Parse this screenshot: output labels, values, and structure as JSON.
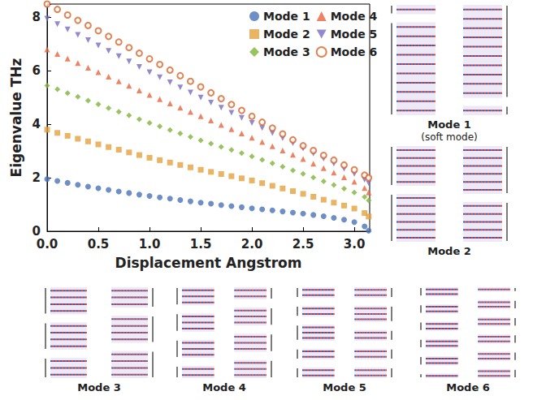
{
  "chart_data": {
    "type": "scatter",
    "x_label": "Displacement Angstrom",
    "y_label": "Eigenvalue THz",
    "x": [
      0.0,
      0.1,
      0.2,
      0.3,
      0.4,
      0.5,
      0.6,
      0.7,
      0.8,
      0.9,
      1.0,
      1.1,
      1.2,
      1.3,
      1.4,
      1.5,
      1.6,
      1.7,
      1.8,
      1.9,
      2.0,
      2.1,
      2.2,
      2.3,
      2.4,
      2.5,
      2.6,
      2.7,
      2.8,
      2.9,
      3.0,
      3.1,
      3.14
    ],
    "series": [
      {
        "name": "Mode 1",
        "color": "#4a72b8",
        "marker": "circle",
        "values": [
          1.95,
          1.88,
          1.81,
          1.74,
          1.67,
          1.61,
          1.55,
          1.49,
          1.43,
          1.37,
          1.32,
          1.27,
          1.22,
          1.17,
          1.12,
          1.07,
          1.03,
          0.98,
          0.94,
          0.9,
          0.86,
          0.82,
          0.78,
          0.74,
          0.7,
          0.66,
          0.61,
          0.56,
          0.5,
          0.43,
          0.34,
          0.18,
          0.02
        ]
      },
      {
        "name": "Mode 2",
        "color": "#e3a13c",
        "marker": "square",
        "values": [
          3.8,
          3.68,
          3.57,
          3.46,
          3.36,
          3.25,
          3.15,
          3.05,
          2.95,
          2.85,
          2.75,
          2.66,
          2.57,
          2.48,
          2.39,
          2.3,
          2.22,
          2.14,
          2.06,
          1.98,
          1.9,
          1.8,
          1.7,
          1.6,
          1.5,
          1.4,
          1.29,
          1.18,
          1.07,
          0.96,
          0.85,
          0.68,
          0.55
        ]
      },
      {
        "name": "Mode 3",
        "color": "#7fb33a",
        "marker": "diamond",
        "values": [
          5.45,
          5.31,
          5.17,
          5.03,
          4.89,
          4.75,
          4.61,
          4.47,
          4.33,
          4.19,
          4.05,
          3.92,
          3.79,
          3.66,
          3.53,
          3.4,
          3.28,
          3.16,
          3.04,
          2.92,
          2.8,
          2.67,
          2.54,
          2.41,
          2.28,
          2.15,
          2.01,
          1.87,
          1.73,
          1.59,
          1.45,
          1.28,
          1.15
        ]
      },
      {
        "name": "Mode 4",
        "color": "#e8643c",
        "marker": "triangle",
        "values": [
          6.8,
          6.63,
          6.46,
          6.29,
          6.12,
          5.95,
          5.78,
          5.61,
          5.44,
          5.27,
          5.1,
          4.94,
          4.78,
          4.62,
          4.46,
          4.3,
          4.14,
          3.98,
          3.82,
          3.66,
          3.5,
          3.34,
          3.18,
          3.02,
          2.86,
          2.7,
          2.53,
          2.36,
          2.19,
          2.02,
          1.85,
          1.62,
          1.45
        ]
      },
      {
        "name": "Mode 5",
        "color": "#7b6cc0",
        "marker": "triangle-down",
        "values": [
          7.95,
          7.75,
          7.55,
          7.35,
          7.15,
          6.95,
          6.75,
          6.55,
          6.35,
          6.15,
          5.95,
          5.76,
          5.57,
          5.38,
          5.19,
          5.0,
          4.81,
          4.62,
          4.43,
          4.24,
          4.05,
          3.86,
          3.67,
          3.48,
          3.29,
          3.1,
          2.91,
          2.72,
          2.53,
          2.34,
          2.15,
          1.93,
          1.8
        ]
      },
      {
        "name": "Mode 6",
        "color": "#d9652a",
        "marker": "circle-open",
        "values": [
          8.5,
          8.3,
          8.09,
          7.89,
          7.7,
          7.5,
          7.29,
          7.08,
          6.87,
          6.66,
          6.45,
          6.24,
          6.03,
          5.82,
          5.61,
          5.4,
          5.18,
          4.96,
          4.74,
          4.52,
          4.3,
          4.08,
          3.86,
          3.64,
          3.42,
          3.2,
          3.02,
          2.84,
          2.66,
          2.48,
          2.3,
          2.1,
          2.0
        ]
      }
    ],
    "xlim": [
      0,
      3.15
    ],
    "xticks": [
      {
        "value": 0,
        "label": "0.0"
      },
      {
        "value": 0.5,
        "label": "0.5"
      },
      {
        "value": 1,
        "label": "1.0"
      },
      {
        "value": 1.5,
        "label": "1.5"
      },
      {
        "value": 2,
        "label": "2.0"
      },
      {
        "value": 2.5,
        "label": "2.5"
      },
      {
        "value": 3,
        "label": "3.0"
      }
    ],
    "ylim": [
      0,
      8.5
    ],
    "yticks": [
      0,
      2,
      4,
      6,
      8
    ],
    "grid": false,
    "legend": "upper right"
  },
  "diagrams": [
    {
      "title": "Mode 1",
      "subtitle": "(soft mode)"
    },
    {
      "title": "Mode 2"
    },
    {
      "title": "Mode 3"
    },
    {
      "title": "Mode 4"
    },
    {
      "title": "Mode 5"
    },
    {
      "title": "Mode 6"
    }
  ]
}
